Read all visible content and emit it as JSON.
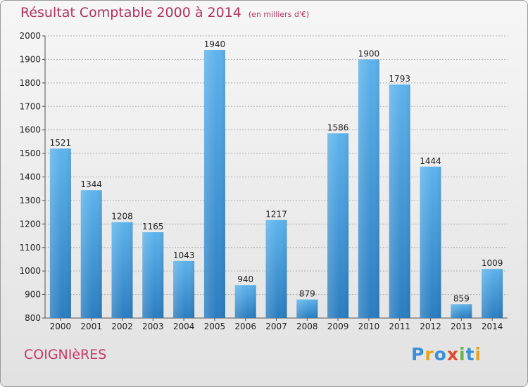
{
  "header": {
    "title": "Résultat Comptable 2000 à 2014",
    "unit": "(en milliers d'€)"
  },
  "footer": {
    "place": "COIGNIèRES",
    "logo": [
      "P",
      "r",
      "o",
      "x",
      "i",
      "t",
      "i"
    ],
    "logo_colors": [
      "#3a8fd8",
      "#e8a21b",
      "#3a8fd8",
      "#e04a2a",
      "#6ab04c",
      "#3a8fd8",
      "#e8a21b"
    ]
  },
  "colors": {
    "bar_top": "#5db3ec",
    "bar_bottom": "#2a7dc0",
    "grid": "#b0b0b0",
    "title": "#b03060"
  },
  "chart_data": {
    "type": "bar",
    "title": "Résultat Comptable 2000 à 2014",
    "ylabel": "",
    "xlabel": "",
    "categories": [
      "2000",
      "2001",
      "2002",
      "2003",
      "2004",
      "2005",
      "2006",
      "2007",
      "2008",
      "2009",
      "2010",
      "2011",
      "2012",
      "2013",
      "2014"
    ],
    "values": [
      1521,
      1344,
      1208,
      1165,
      1043,
      1940,
      940,
      1217,
      879,
      1586,
      1900,
      1793,
      1444,
      859,
      1009
    ],
    "ylim": [
      800,
      2000
    ],
    "yticks": [
      800,
      900,
      1000,
      1100,
      1200,
      1300,
      1400,
      1500,
      1600,
      1700,
      1800,
      1900,
      2000
    ],
    "grid": true
  }
}
